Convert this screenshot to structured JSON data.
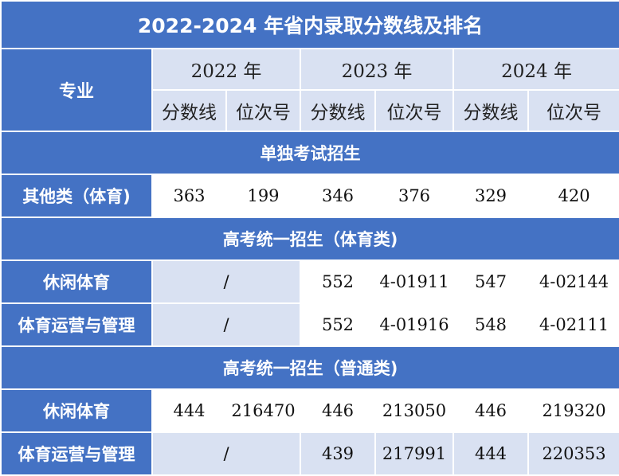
{
  "title": "2022-2024 年省内录取分数线及排名",
  "header": {
    "major": "专业",
    "years": [
      "2022 年",
      "2023 年",
      "2024 年"
    ],
    "score_label": "分数线",
    "rank_label": "位次号"
  },
  "sections": [
    {
      "name": "单独考试招生",
      "rows": [
        {
          "major": "其他类（体育)",
          "cells": [
            "363",
            "199",
            "346",
            "376",
            "329",
            "420"
          ]
        }
      ]
    },
    {
      "name": "高考统一招生（体育类)",
      "rows": [
        {
          "major": "休闲体育",
          "na_2022": "/",
          "cells": [
            "552",
            "4-01911",
            "547",
            "4-02144"
          ]
        },
        {
          "major": "体育运营与管理",
          "na_2022": "/",
          "cells": [
            "552",
            "4-01916",
            "548",
            "4-02111"
          ]
        }
      ]
    },
    {
      "name": "高考统一招生（普通类)",
      "rows": [
        {
          "major": "休闲体育",
          "cells": [
            "444",
            "216470",
            "446",
            "213050",
            "446",
            "219320"
          ]
        },
        {
          "major": "体育运营与管理",
          "na_2022": "/",
          "cells": [
            "439",
            "217991",
            "444",
            "220353"
          ]
        }
      ]
    }
  ],
  "colors": {
    "header_blue": "#4472c4",
    "light_blue": "#d9e1f2",
    "white": "#ffffff"
  }
}
